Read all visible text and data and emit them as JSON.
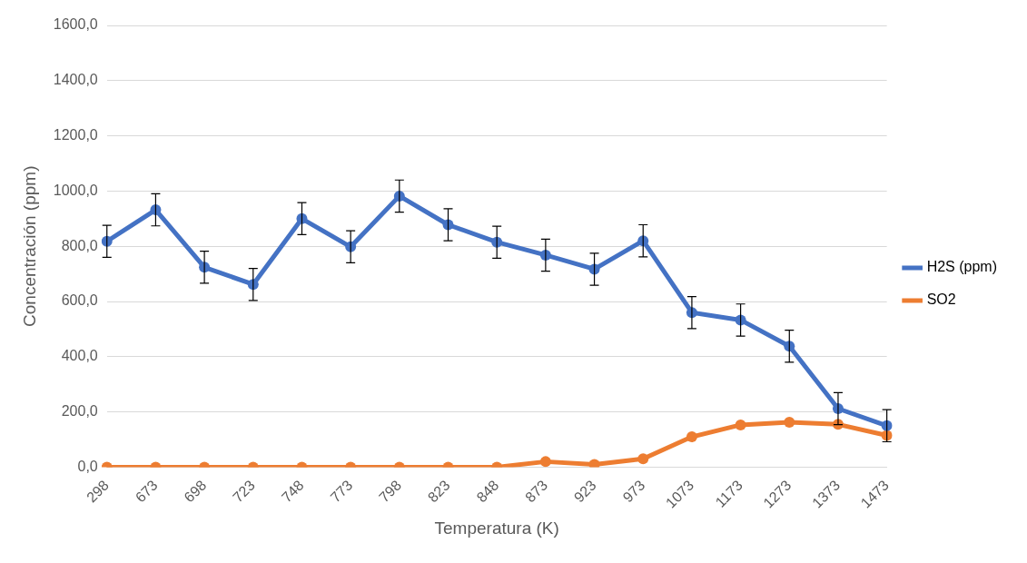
{
  "chart_data": {
    "type": "line",
    "xlabel": "Temperatura (K)",
    "ylabel": "Concentración (ppm)",
    "categories": [
      "298",
      "673",
      "698",
      "723",
      "748",
      "773",
      "798",
      "823",
      "848",
      "873",
      "923",
      "973",
      "1073",
      "1173",
      "1273",
      "1373",
      "1473"
    ],
    "series": [
      {
        "name": "H2S (ppm)",
        "color": "#4472c4",
        "values": [
          818,
          932,
          724,
          662,
          900,
          798,
          982,
          878,
          815,
          768,
          717,
          820,
          560,
          533,
          438,
          212,
          150
        ],
        "errors": [
          58,
          58,
          58,
          58,
          58,
          58,
          58,
          58,
          58,
          58,
          58,
          58,
          58,
          58,
          58,
          58,
          58
        ]
      },
      {
        "name": "SO2",
        "color": "#ed7d31",
        "values": [
          0,
          0,
          0,
          0,
          0,
          0,
          0,
          0,
          0,
          20,
          10,
          30,
          110,
          153,
          163,
          155,
          115
        ]
      }
    ],
    "ylim": [
      0,
      1600
    ],
    "yticks": [
      {
        "value": 0,
        "label": "0,0"
      },
      {
        "value": 200,
        "label": "200,0"
      },
      {
        "value": 400,
        "label": "400,0"
      },
      {
        "value": 600,
        "label": "600,0"
      },
      {
        "value": 800,
        "label": "800,0"
      },
      {
        "value": 1000,
        "label": "1000,0"
      },
      {
        "value": 1200,
        "label": "1200,0"
      },
      {
        "value": 1400,
        "label": "1400,0"
      },
      {
        "value": 1600,
        "label": "1600,0"
      }
    ],
    "grid": "y",
    "legend": "right",
    "marker": "circle",
    "line_style": "solid"
  }
}
